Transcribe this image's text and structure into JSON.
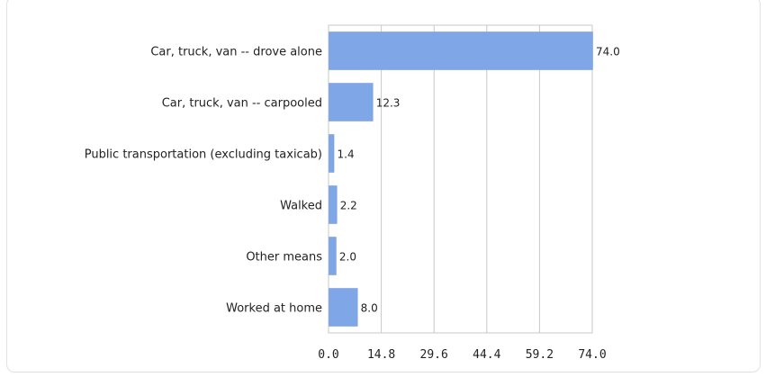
{
  "chart_data": {
    "type": "bar",
    "orientation": "horizontal",
    "categories": [
      "Car, truck, van -- drove alone",
      "Car, truck, van -- carpooled",
      "Public transportation (excluding taxicab)",
      "Walked",
      "Other means",
      "Worked at home"
    ],
    "values": [
      74.0,
      12.3,
      1.4,
      2.2,
      2.0,
      8.0
    ],
    "value_labels": [
      "74.0",
      "12.3",
      "1.4",
      "2.2",
      "2.0",
      "8.0"
    ],
    "xlim": [
      0,
      74.0
    ],
    "xticks": [
      "0.0",
      "14.8",
      "29.6",
      "44.4",
      "59.2",
      "74.0"
    ],
    "grid": true,
    "bar_color": "#7fa6e6"
  }
}
